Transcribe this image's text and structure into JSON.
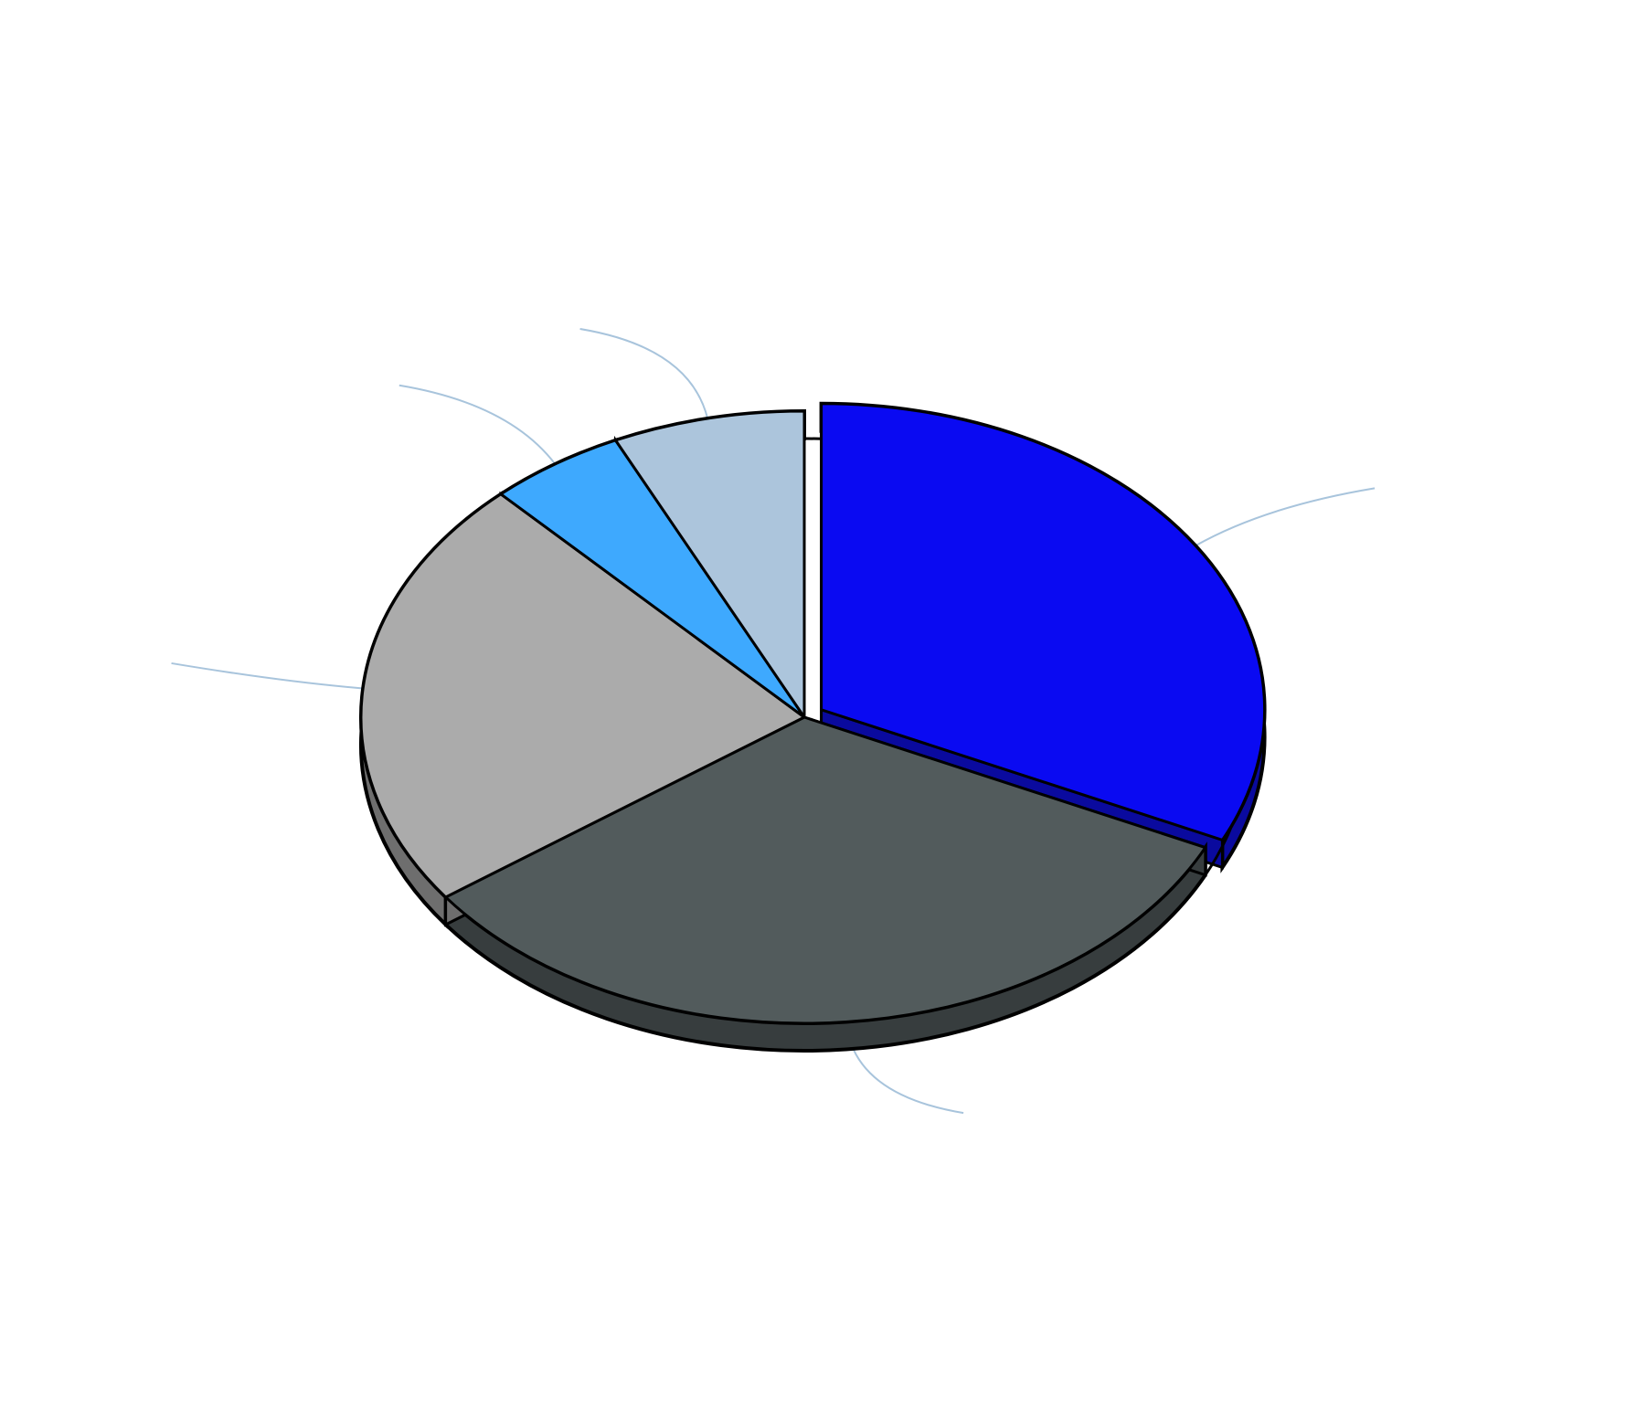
{
  "chart_data": {
    "type": "pie",
    "title": "",
    "slices": [
      {
        "name": "slice-dark-blue",
        "value": 32,
        "color": "#0a0af2",
        "side_color": "#0a0a9e",
        "exploded": true
      },
      {
        "name": "slice-charcoal",
        "value": 33,
        "color": "#525b5c",
        "side_color": "#373d3e",
        "exploded": false
      },
      {
        "name": "slice-grey",
        "value": 23,
        "color": "#ababab",
        "side_color": "#6e6e6e",
        "exploded": false
      },
      {
        "name": "slice-light-blue",
        "value": 5,
        "color": "#3ea9fe",
        "side_color": "#2a76b3",
        "exploded": false
      },
      {
        "name": "slice-pale-blue",
        "value": 7,
        "color": "#acc5dc",
        "side_color": "#7f95a8",
        "exploded": false
      }
    ],
    "start_angle_deg": 90,
    "direction": "clockwise",
    "leader_line_color": "#a8c4dc",
    "data_labels_visible": false,
    "legend": "none"
  }
}
